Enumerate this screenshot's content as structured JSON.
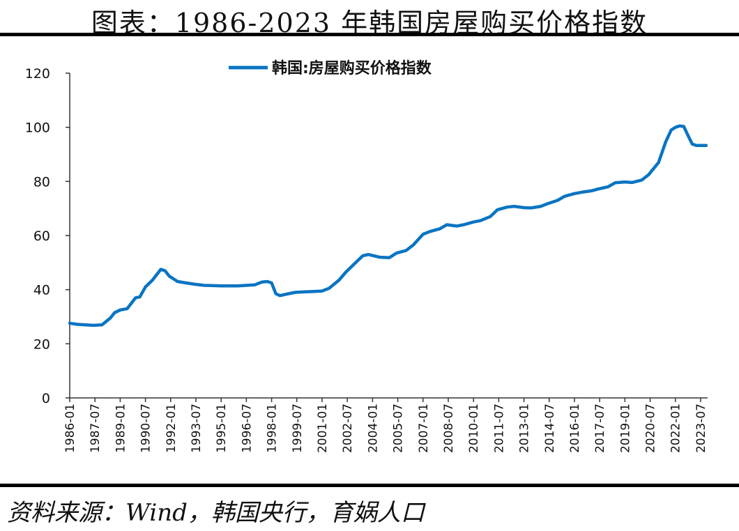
{
  "title": "图表：1986-2023 年韩国房屋购买价格指数",
  "source": "资料来源：Wind，韩国央行，育娲人口",
  "colors": {
    "series": "#0a74c2",
    "axis": "#333333"
  },
  "chart_data": {
    "type": "line",
    "title": "图表：1986-2023 年韩国房屋购买价格指数",
    "xlabel": "",
    "ylabel": "",
    "ylim": [
      0,
      120
    ],
    "yticks": [
      0,
      20,
      40,
      60,
      80,
      100,
      120
    ],
    "xlim": [
      "1986-01",
      "2023-12"
    ],
    "xticks": [
      "1986-01",
      "1987-07",
      "1989-01",
      "1990-07",
      "1992-01",
      "1993-07",
      "1995-01",
      "1996-07",
      "1998-01",
      "1999-07",
      "2001-01",
      "2002-07",
      "2004-01",
      "2005-07",
      "2007-01",
      "2008-07",
      "2010-01",
      "2011-07",
      "2013-01",
      "2014-07",
      "2016-01",
      "2017-07",
      "2019-01",
      "2020-07",
      "2022-01",
      "2023-07"
    ],
    "legend": "top-center",
    "grid": false,
    "series": [
      {
        "name": "韩国:房屋购买价格指数",
        "x": [
          "1986-01",
          "1986-06",
          "1986-12",
          "1987-06",
          "1987-12",
          "1988-06",
          "1988-09",
          "1989-01",
          "1989-06",
          "1989-12",
          "1990-03",
          "1990-07",
          "1990-12",
          "1991-03",
          "1991-06",
          "1991-09",
          "1991-12",
          "1992-03",
          "1992-06",
          "1992-12",
          "1993-06",
          "1994-01",
          "1994-06",
          "1995-01",
          "1996-01",
          "1996-07",
          "1997-01",
          "1997-06",
          "1997-10",
          "1998-01",
          "1998-04",
          "1998-07",
          "1999-01",
          "1999-06",
          "2000-01",
          "2000-06",
          "2001-01",
          "2001-06",
          "2002-01",
          "2002-06",
          "2003-01",
          "2003-06",
          "2003-10",
          "2004-06",
          "2005-01",
          "2005-06",
          "2006-01",
          "2006-06",
          "2007-01",
          "2007-06",
          "2008-01",
          "2008-06",
          "2009-01",
          "2009-06",
          "2010-01",
          "2010-06",
          "2011-01",
          "2011-06",
          "2012-01",
          "2012-06",
          "2013-01",
          "2013-06",
          "2014-01",
          "2014-06",
          "2015-01",
          "2015-06",
          "2016-01",
          "2016-06",
          "2017-01",
          "2017-06",
          "2018-01",
          "2018-06",
          "2019-01",
          "2019-06",
          "2020-01",
          "2020-06",
          "2021-01",
          "2021-06",
          "2021-10",
          "2022-01",
          "2022-04",
          "2022-07",
          "2022-10",
          "2023-01",
          "2023-04",
          "2023-07",
          "2023-11"
        ],
        "values": [
          27.6,
          27.2,
          27.0,
          26.8,
          27.0,
          29.5,
          31.5,
          32.5,
          33.0,
          37.0,
          37.3,
          41.0,
          43.5,
          45.5,
          47.5,
          47.0,
          45.0,
          44.0,
          43.0,
          42.5,
          42.0,
          41.6,
          41.5,
          41.4,
          41.4,
          41.6,
          41.8,
          42.8,
          43.0,
          42.5,
          38.5,
          37.8,
          38.5,
          39.0,
          39.2,
          39.3,
          39.5,
          40.5,
          43.5,
          46.5,
          50.0,
          52.5,
          53.0,
          52.0,
          51.8,
          53.5,
          54.5,
          56.5,
          60.5,
          61.5,
          62.5,
          64.0,
          63.5,
          64.0,
          65.0,
          65.5,
          67.0,
          69.5,
          70.5,
          70.8,
          70.3,
          70.2,
          70.8,
          71.8,
          73.0,
          74.5,
          75.5,
          76.0,
          76.5,
          77.2,
          78.0,
          79.5,
          79.8,
          79.6,
          80.5,
          82.5,
          87.0,
          94.5,
          99.0,
          100.0,
          100.5,
          100.3,
          97.0,
          93.8,
          93.3,
          93.3,
          93.3
        ]
      }
    ]
  }
}
